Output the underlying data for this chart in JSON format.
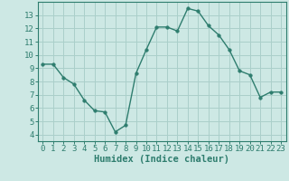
{
  "x": [
    0,
    1,
    2,
    3,
    4,
    5,
    6,
    7,
    8,
    9,
    10,
    11,
    12,
    13,
    14,
    15,
    16,
    17,
    18,
    19,
    20,
    21,
    22,
    23
  ],
  "y": [
    9.3,
    9.3,
    8.3,
    7.8,
    6.6,
    5.8,
    5.7,
    4.2,
    4.7,
    8.6,
    10.4,
    12.1,
    12.1,
    11.8,
    13.5,
    13.3,
    12.2,
    11.5,
    10.4,
    8.8,
    8.5,
    6.8,
    7.2,
    7.2
  ],
  "xlim": [
    -0.5,
    23.5
  ],
  "ylim": [
    3.5,
    14.0
  ],
  "yticks": [
    4,
    5,
    6,
    7,
    8,
    9,
    10,
    11,
    12,
    13
  ],
  "xticks": [
    0,
    1,
    2,
    3,
    4,
    5,
    6,
    7,
    8,
    9,
    10,
    11,
    12,
    13,
    14,
    15,
    16,
    17,
    18,
    19,
    20,
    21,
    22,
    23
  ],
  "xlabel": "Humidex (Indice chaleur)",
  "line_color": "#2e7d6e",
  "marker_size": 2.5,
  "bg_color": "#cde8e4",
  "grid_color": "#aacfca",
  "axis_color": "#2e7d6e",
  "tick_label_fontsize": 6.5,
  "xlabel_fontsize": 7.5
}
